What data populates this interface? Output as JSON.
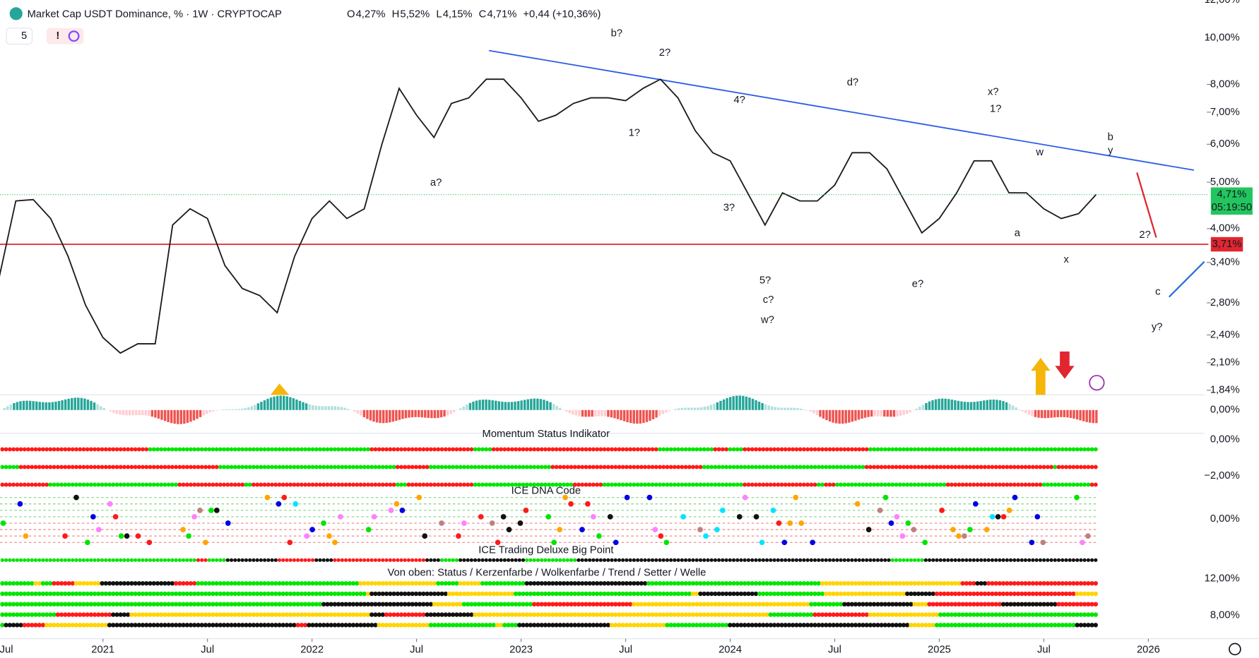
{
  "header": {
    "symbol": "Market Cap USDT Dominance, % · 1W · CRYPTOCAP",
    "ohlc": [
      {
        "k": "O",
        "v": "4,27%"
      },
      {
        "k": "H",
        "v": "5,52%"
      },
      {
        "k": "L",
        "v": "4,15%"
      },
      {
        "k": "C",
        "v": "4,71%"
      }
    ],
    "change": "+0,44 (+10,36%)",
    "indicators": "5",
    "alert": "!"
  },
  "chart_data": {
    "type": "line",
    "log_scale": true,
    "color": "#1a1a1a",
    "x": [
      "2020-07",
      "2020-08",
      "2020-09",
      "2020-10",
      "2020-11",
      "2020-12",
      "2021-01",
      "2021-02",
      "2021-03",
      "2021-04",
      "2021-05",
      "2021-06",
      "2021-07",
      "2021-08",
      "2021-09",
      "2021-10",
      "2021-11",
      "2021-12",
      "2022-01",
      "2022-02",
      "2022-03",
      "2022-04",
      "2022-05",
      "2022-06",
      "2022-07",
      "2022-08",
      "2022-09",
      "2022-10",
      "2022-11",
      "2022-12",
      "2023-01",
      "2023-02",
      "2023-03",
      "2023-04",
      "2023-05",
      "2023-06",
      "2023-07",
      "2023-08",
      "2023-09",
      "2023-10",
      "2023-11",
      "2023-12",
      "2024-01",
      "2024-02",
      "2024-03",
      "2024-04",
      "2024-05",
      "2024-06",
      "2024-07",
      "2024-08",
      "2024-09",
      "2024-10",
      "2024-11",
      "2024-12",
      "2025-01",
      "2025-02",
      "2025-03",
      "2025-04",
      "2025-05",
      "2025-06",
      "2025-07",
      "2025-08",
      "2025-09",
      "2025-10"
    ],
    "values": [
      3.11,
      4.57,
      4.6,
      4.2,
      3.5,
      2.77,
      2.37,
      2.2,
      2.3,
      2.3,
      4.07,
      4.4,
      4.2,
      3.35,
      3.0,
      2.9,
      2.67,
      3.5,
      4.2,
      4.57,
      4.2,
      4.4,
      5.98,
      7.85,
      6.9,
      6.2,
      7.3,
      7.5,
      8.2,
      8.2,
      7.5,
      6.7,
      6.9,
      7.3,
      7.5,
      7.5,
      7.4,
      7.85,
      8.2,
      7.5,
      6.4,
      5.76,
      5.54,
      4.75,
      4.07,
      4.75,
      4.57,
      4.57,
      4.93,
      5.76,
      5.76,
      5.33,
      4.57,
      3.92,
      4.2,
      4.75,
      5.54,
      5.54,
      4.75,
      4.75,
      4.4,
      4.2,
      4.3,
      4.71
    ],
    "ylim": [
      1.8,
      12
    ],
    "yticks": [
      {
        "value": 12,
        "label": "12,00%"
      },
      {
        "value": 10,
        "label": "10,00%"
      },
      {
        "value": 8,
        "label": "8,00%"
      },
      {
        "value": 7,
        "label": "7,00%"
      },
      {
        "value": 6,
        "label": "6,00%"
      },
      {
        "value": 5,
        "label": "5,00%"
      },
      {
        "value": 4,
        "label": "4,00%"
      },
      {
        "value": 3.4,
        "label": "3,40%"
      },
      {
        "value": 2.8,
        "label": "2,80%"
      },
      {
        "value": 2.4,
        "label": "2,40%"
      },
      {
        "value": 2.1,
        "label": "2,10%"
      },
      {
        "value": 1.84,
        "label": "1,84%"
      }
    ],
    "xticks": [
      {
        "value": "2020-07",
        "label": "Jul"
      },
      {
        "value": "2021-01",
        "label": "2021"
      },
      {
        "value": "2021-07",
        "label": "Jul"
      },
      {
        "value": "2022-01",
        "label": "2022"
      },
      {
        "value": "2022-07",
        "label": "Jul"
      },
      {
        "value": "2023-01",
        "label": "2023"
      },
      {
        "value": "2023-07",
        "label": "Jul"
      },
      {
        "value": "2024-01",
        "label": "2024"
      },
      {
        "value": "2024-07",
        "label": "Jul"
      },
      {
        "value": "2025-01",
        "label": "2025"
      },
      {
        "value": "2025-07",
        "label": "Jul"
      },
      {
        "value": "2026-01",
        "label": "2026"
      }
    ],
    "hline": {
      "value": 3.71,
      "label": "3,71%",
      "color": "#e0262f"
    },
    "last": {
      "value": 4.71,
      "label": "4,71%",
      "countdown": "05:19:50",
      "color": "#22c55e"
    },
    "annotations": [
      {
        "text": "b?",
        "color": "#3aa33a"
      },
      {
        "text": "2?",
        "color": "#e0262f"
      },
      {
        "text": "d?",
        "color": "#3aa33a"
      },
      {
        "text": "x?",
        "color": "#e0262f"
      },
      {
        "text": "1?",
        "color": "#2b6de0"
      },
      {
        "text": "4?",
        "color": "#e0262f"
      },
      {
        "text": "1?",
        "color": "#e0262f"
      },
      {
        "text": "a?",
        "color": "#3aa33a"
      },
      {
        "text": "3?",
        "color": "#e0262f"
      },
      {
        "text": "5?",
        "color": "#e0262f"
      },
      {
        "text": "c?",
        "color": "#3aa33a"
      },
      {
        "text": "w?",
        "color": "#e0262f"
      },
      {
        "text": "e?",
        "color": "#3aa33a"
      },
      {
        "text": "w",
        "color": "#e0262f"
      },
      {
        "text": "b",
        "color": "#2b6de0"
      },
      {
        "text": "y",
        "color": "#e0262f"
      },
      {
        "text": "a",
        "color": "#2b6de0"
      },
      {
        "text": "x",
        "color": "#e0262f"
      },
      {
        "text": "2?",
        "color": "#2b6de0"
      },
      {
        "text": "c",
        "color": "#2b6de0"
      },
      {
        "text": "y?",
        "color": "#e0262f"
      }
    ]
  },
  "panes": {
    "titles": [
      "Momentum Status Indikator",
      "ICE DNA Code",
      "ICE Trading Deluxe Big Point",
      "Von oben: Status / Kerzenfarbe / Wolkenfarbe / Trend / Setter / Welle"
    ],
    "axis_labels": [
      "0,00%",
      "0,00%",
      "−2,00%",
      "0,00%",
      "12,00%",
      "8,00%"
    ]
  }
}
